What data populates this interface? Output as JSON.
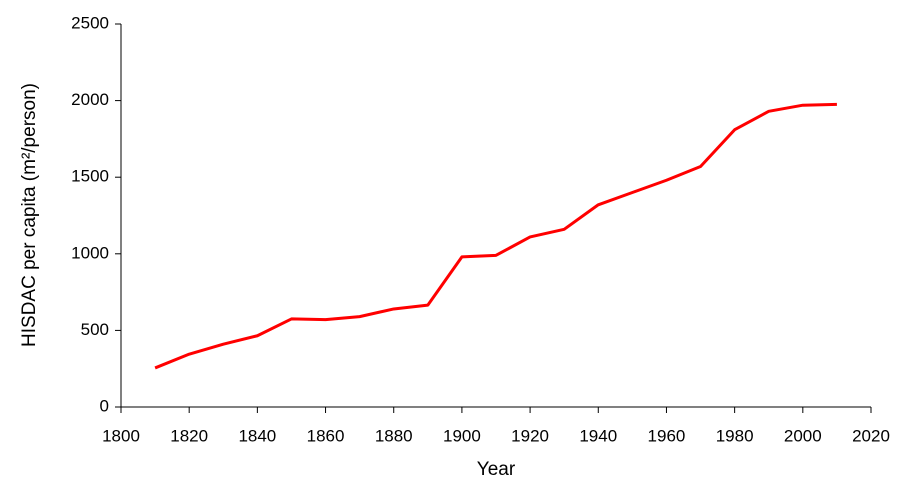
{
  "chart_data": {
    "type": "line",
    "x_label": "Year",
    "y_label": "HISDAC per capita (m²/person)",
    "x": [
      1810,
      1820,
      1830,
      1840,
      1850,
      1860,
      1870,
      1880,
      1890,
      1900,
      1910,
      1920,
      1930,
      1940,
      1950,
      1960,
      1970,
      1980,
      1990,
      2000,
      2010
    ],
    "series": [
      {
        "name": "HISDAC per capita",
        "color": "#ff0000",
        "values": [
          255,
          345,
          410,
          465,
          575,
          570,
          590,
          640,
          665,
          980,
          990,
          1110,
          1160,
          1320,
          1400,
          1480,
          1570,
          1810,
          1930,
          1970,
          1975
        ]
      }
    ],
    "xlim": [
      1800,
      2020
    ],
    "xticks": [
      1800,
      1820,
      1840,
      1860,
      1880,
      1900,
      1920,
      1940,
      1960,
      1980,
      2000,
      2020
    ],
    "ylim": [
      0,
      2500
    ],
    "yticks": [
      0,
      500,
      1000,
      1500,
      2000,
      2500
    ],
    "grid": false
  }
}
